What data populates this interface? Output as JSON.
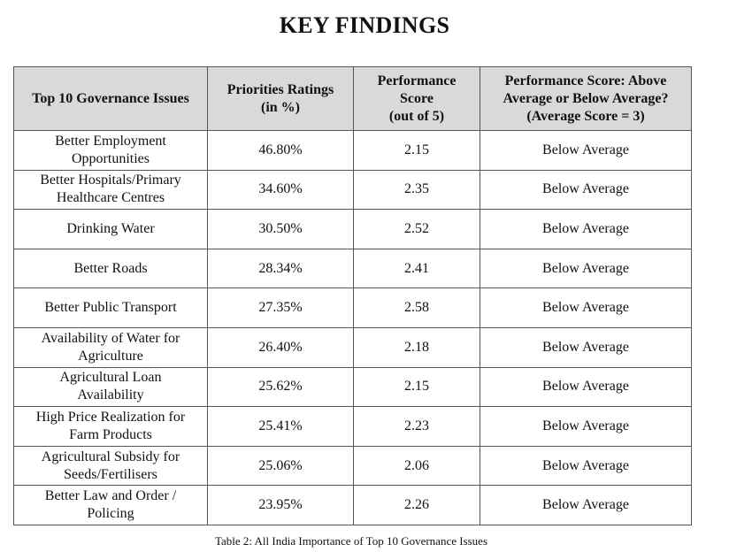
{
  "title": "KEY FINDINGS",
  "table": {
    "headers": [
      [
        "Top 10 Governance Issues"
      ],
      [
        "Priorities Ratings",
        "(in %)"
      ],
      [
        "Performance",
        "Score",
        "(out of 5)"
      ],
      [
        "Performance Score: Above",
        "Average or Below Average?",
        "(Average Score = 3)"
      ]
    ],
    "rows": [
      {
        "issue": [
          "Better Employment",
          "Opportunities"
        ],
        "rating": "46.80%",
        "score": "2.15",
        "status": "Below Average"
      },
      {
        "issue": [
          "Better Hospitals/Primary",
          "Healthcare Centres"
        ],
        "rating": "34.60%",
        "score": "2.35",
        "status": "Below Average"
      },
      {
        "issue": [
          "Drinking Water"
        ],
        "rating": "30.50%",
        "score": "2.52",
        "status": "Below Average"
      },
      {
        "issue": [
          "Better Roads"
        ],
        "rating": "28.34%",
        "score": "2.41",
        "status": "Below Average"
      },
      {
        "issue": [
          "Better Public Transport"
        ],
        "rating": "27.35%",
        "score": "2.58",
        "status": "Below Average"
      },
      {
        "issue": [
          "Availability of Water for",
          "Agriculture"
        ],
        "rating": "26.40%",
        "score": "2.18",
        "status": "Below Average"
      },
      {
        "issue": [
          "Agricultural Loan",
          "Availability"
        ],
        "rating": "25.62%",
        "score": "2.15",
        "status": "Below Average"
      },
      {
        "issue": [
          "High Price Realization for",
          "Farm Products"
        ],
        "rating": "25.41%",
        "score": "2.23",
        "status": "Below Average"
      },
      {
        "issue": [
          "Agricultural Subsidy for",
          "Seeds/Fertilisers"
        ],
        "rating": "25.06%",
        "score": "2.06",
        "status": "Below Average"
      },
      {
        "issue": [
          "Better Law and Order /",
          "Policing"
        ],
        "rating": "23.95%",
        "score": "2.26",
        "status": "Below Average"
      }
    ]
  },
  "caption": "Table 2: All India Importance of Top 10 Governance Issues"
}
